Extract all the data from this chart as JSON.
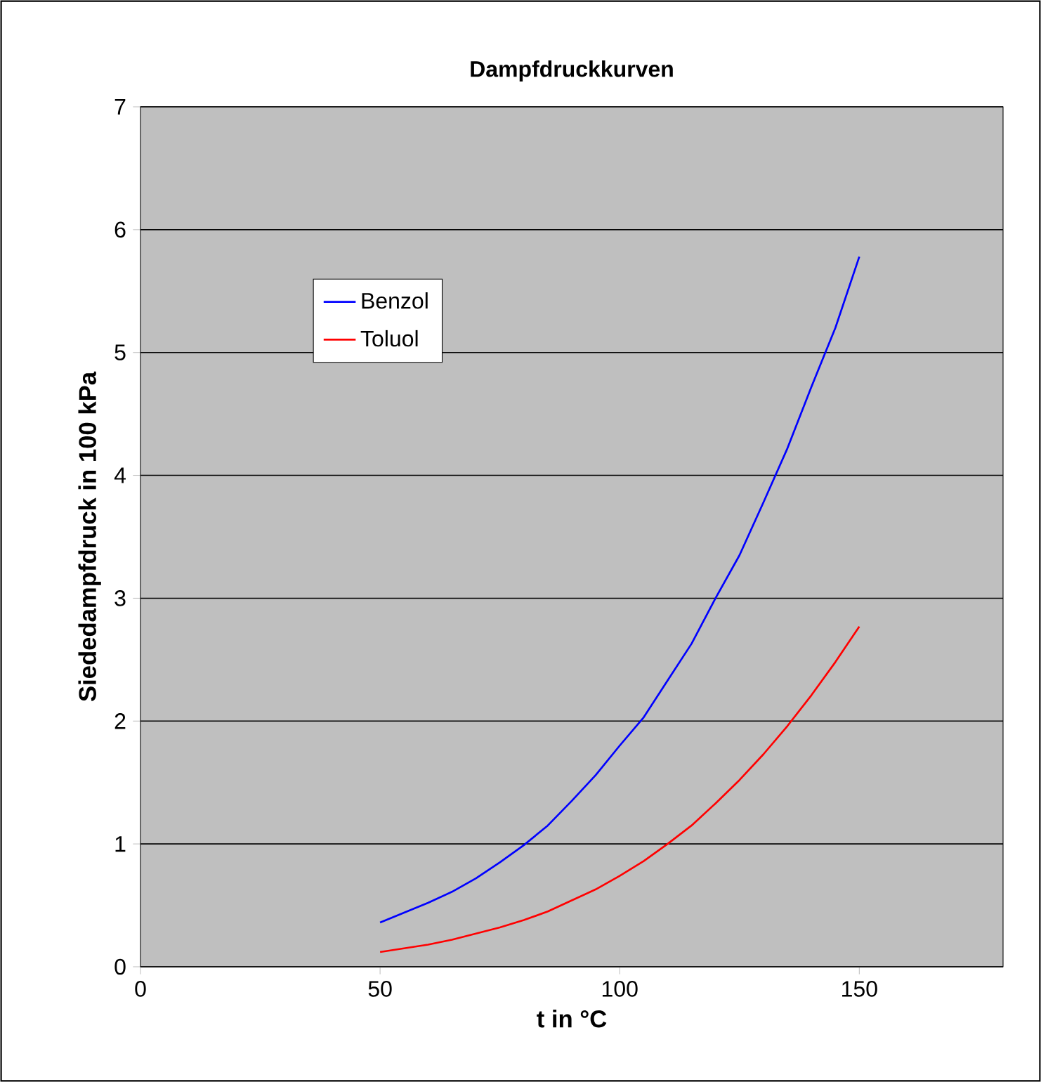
{
  "chart_data": {
    "type": "line",
    "title": "Dampfdruckkurven",
    "xlabel": "t in °C",
    "ylabel": "Siededampfdruck in 100 kPa",
    "x": [
      50,
      55,
      60,
      65,
      70,
      75,
      80,
      85,
      90,
      95,
      100,
      105,
      110,
      115,
      120,
      125,
      130,
      135,
      140,
      145,
      150
    ],
    "series": [
      {
        "name": "Benzol",
        "color": "#0000ff",
        "values": [
          0.36,
          0.44,
          0.52,
          0.61,
          0.72,
          0.85,
          0.99,
          1.15,
          1.35,
          1.56,
          1.8,
          2.03,
          2.33,
          2.63,
          3.0,
          3.35,
          3.78,
          4.22,
          4.72,
          5.2,
          5.78
        ]
      },
      {
        "name": "Toluol",
        "color": "#ff0000",
        "values": [
          0.12,
          0.15,
          0.18,
          0.22,
          0.27,
          0.32,
          0.38,
          0.45,
          0.54,
          0.63,
          0.74,
          0.86,
          1.0,
          1.15,
          1.33,
          1.52,
          1.73,
          1.96,
          2.21,
          2.48,
          2.77
        ]
      }
    ],
    "xlim": [
      0,
      180
    ],
    "xticks": [
      0,
      50,
      100,
      150
    ],
    "ylim": [
      0,
      7
    ],
    "yticks": [
      0,
      1,
      2,
      3,
      4,
      5,
      6,
      7
    ],
    "grid": "y",
    "legend": "top left",
    "marker": "none",
    "line_style": "solid"
  }
}
